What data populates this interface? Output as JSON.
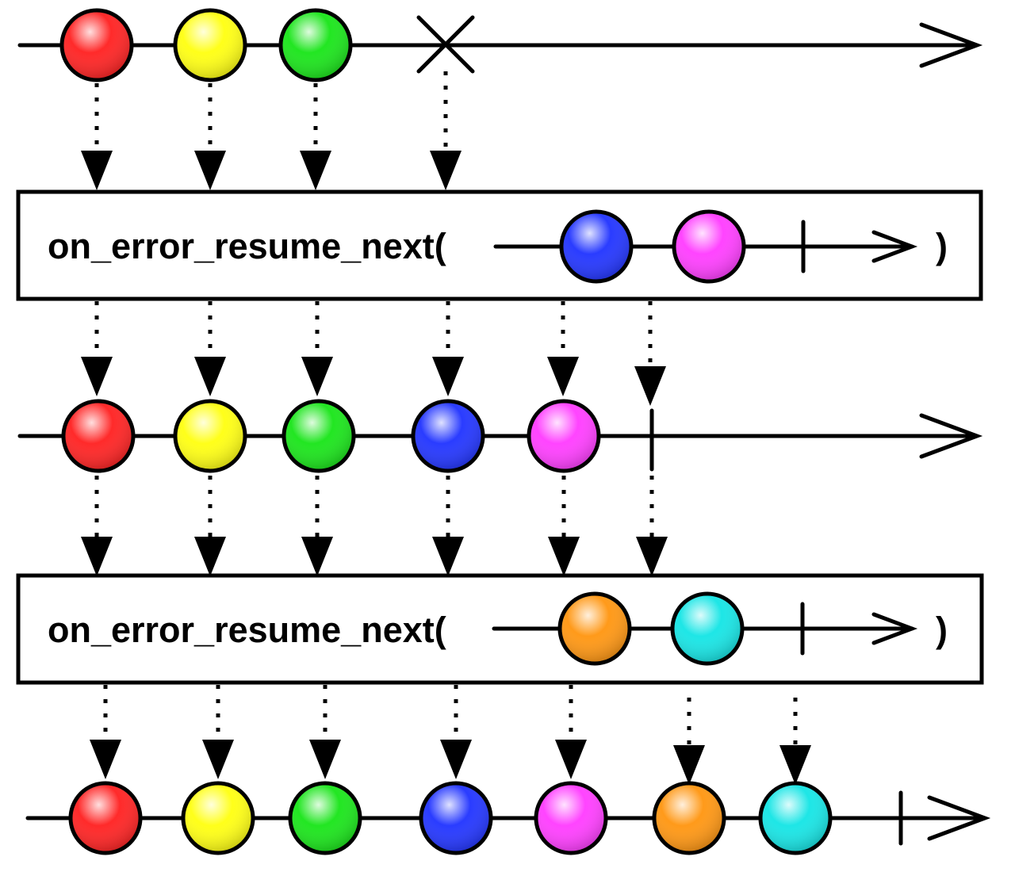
{
  "operator_label": "on_error_resume_next(",
  "close_paren": ")",
  "colors": {
    "red": "#ff2a2a",
    "yellow": "#ffff1a",
    "green": "#22e622",
    "blue": "#2a3cff",
    "magenta": "#ff44ff",
    "orange": "#ff9a1a",
    "cyan": "#1ee6e6"
  },
  "source": {
    "items": [
      "red",
      "yellow",
      "green"
    ],
    "terminator": "error"
  },
  "operators": [
    {
      "label": "on_error_resume_next(",
      "items": [
        "blue",
        "magenta"
      ],
      "terminator": "complete"
    },
    {
      "label": "on_error_resume_next(",
      "items": [
        "orange",
        "cyan"
      ],
      "terminator": "complete"
    }
  ],
  "intermediate": {
    "items": [
      "red",
      "yellow",
      "green",
      "blue",
      "magenta"
    ],
    "terminator": "complete"
  },
  "output": {
    "items": [
      "red",
      "yellow",
      "green",
      "blue",
      "magenta",
      "orange",
      "cyan"
    ],
    "terminator": "complete"
  }
}
